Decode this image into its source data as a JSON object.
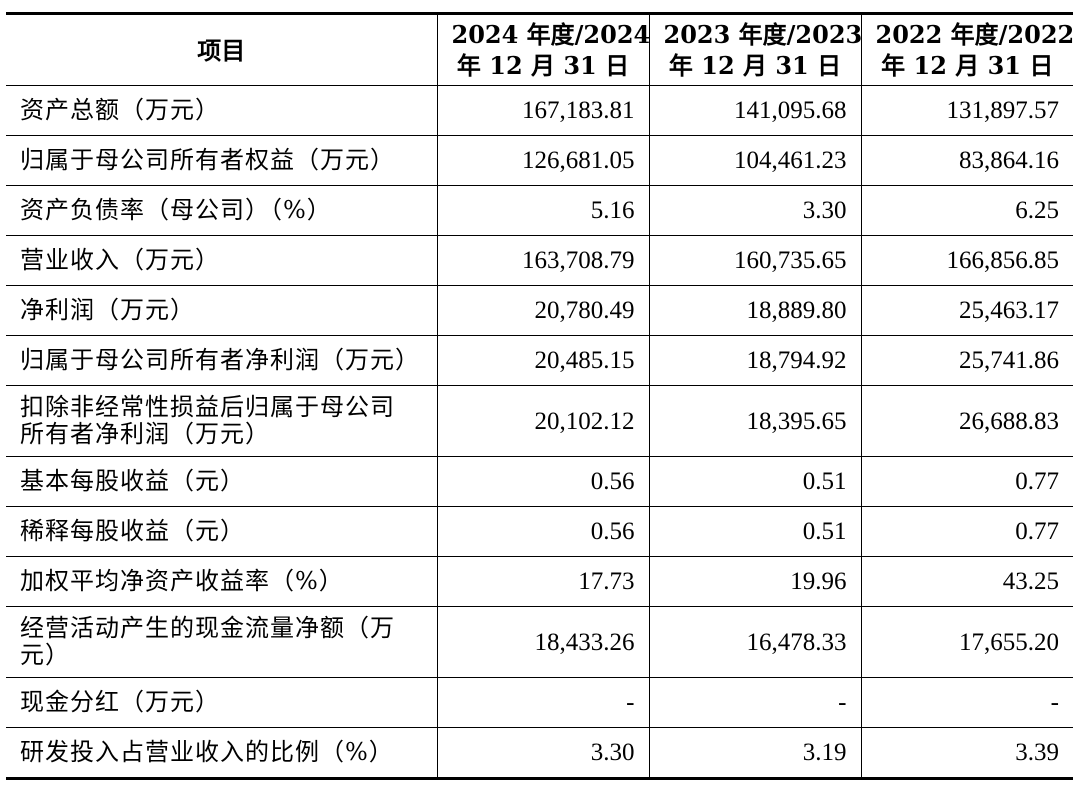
{
  "header": {
    "item_label": "项目",
    "col2024_line1": "2024 年度/2024",
    "col2024_line2": "年 12 月 31 日",
    "col2023_line1": "2023 年度/2023",
    "col2023_line2": "年 12 月 31 日",
    "col2022_line1": "2022 年度/2022",
    "col2022_line2": "年 12 月 31 日"
  },
  "rows": [
    {
      "label": "资产总额（万元）",
      "y2024": "167,183.81",
      "y2023": "141,095.68",
      "y2022": "131,897.57"
    },
    {
      "label": "归属于母公司所有者权益（万元）",
      "y2024": "126,681.05",
      "y2023": "104,461.23",
      "y2022": "83,864.16"
    },
    {
      "label": "资产负债率（母公司）（%）",
      "y2024": "5.16",
      "y2023": "3.30",
      "y2022": "6.25"
    },
    {
      "label": "营业收入（万元）",
      "y2024": "163,708.79",
      "y2023": "160,735.65",
      "y2022": "166,856.85"
    },
    {
      "label": "净利润（万元）",
      "y2024": "20,780.49",
      "y2023": "18,889.80",
      "y2022": "25,463.17"
    },
    {
      "label": "归属于母公司所有者净利润（万元）",
      "y2024": "20,485.15",
      "y2023": "18,794.92",
      "y2022": "25,741.86"
    },
    {
      "label_line1": "扣除非经常性损益后归属于母公司",
      "label_line2": "所有者净利润（万元）",
      "y2024": "20,102.12",
      "y2023": "18,395.65",
      "y2022": "26,688.83"
    },
    {
      "label": "基本每股收益（元）",
      "y2024": "0.56",
      "y2023": "0.51",
      "y2022": "0.77"
    },
    {
      "label": "稀释每股收益（元）",
      "y2024": "0.56",
      "y2023": "0.51",
      "y2022": "0.77"
    },
    {
      "label": "加权平均净资产收益率（%）",
      "y2024": "17.73",
      "y2023": "19.96",
      "y2022": "43.25"
    },
    {
      "label_line1": "经营活动产生的现金流量净额（万",
      "label_line2": "元）",
      "y2024": "18,433.26",
      "y2023": "16,478.33",
      "y2022": "17,655.20"
    },
    {
      "label": "现金分红（万元）",
      "y2024": "-",
      "y2023": "-",
      "y2022": "-"
    },
    {
      "label": "研发投入占营业收入的比例（%）",
      "y2024": "3.30",
      "y2023": "3.19",
      "y2022": "3.39"
    }
  ]
}
